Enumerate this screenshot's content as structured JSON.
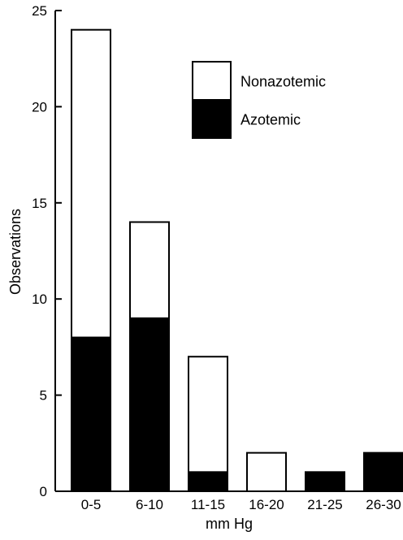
{
  "chart_data": {
    "type": "bar",
    "stacked": true,
    "categories": [
      "0-5",
      "6-10",
      "11-15",
      "16-20",
      "21-25",
      "26-30"
    ],
    "series": [
      {
        "name": "Azotemic",
        "values": [
          8,
          9,
          1,
          0,
          1,
          2
        ],
        "color": "#000000"
      },
      {
        "name": "Nonazotemic",
        "values": [
          16,
          5,
          6,
          2,
          0,
          0
        ],
        "color": "#ffffff"
      }
    ],
    "xlabel": "mm Hg",
    "ylabel": "Observations",
    "ylim": [
      0,
      25
    ],
    "yticks": [
      0,
      5,
      10,
      15,
      20,
      25
    ],
    "grid": false,
    "legend": {
      "position": "top-right",
      "order": [
        "Nonazotemic",
        "Azotemic"
      ]
    }
  }
}
